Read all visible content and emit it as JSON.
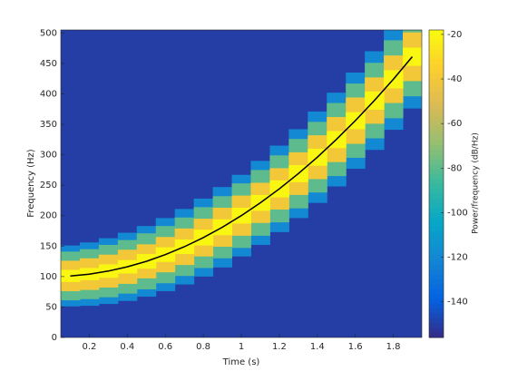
{
  "chart_data": {
    "type": "spectrogram",
    "xlabel": "Time (s)",
    "ylabel": "Frequency (Hz)",
    "colorbar_label": "Power/frequency (dB/Hz)",
    "colormap": "parula",
    "x": [
      0.1,
      0.2,
      0.3,
      0.4,
      0.5,
      0.6,
      0.7,
      0.8,
      0.9,
      1.0,
      1.1,
      1.2,
      1.3,
      1.4,
      1.5,
      1.6,
      1.7,
      1.8,
      1.9
    ],
    "ridge": [
      101,
      104,
      109,
      116,
      125,
      136,
      149,
      164,
      181,
      200,
      221,
      244,
      269,
      296,
      325,
      356,
      389,
      424,
      461
    ],
    "background_level": -150,
    "bands": [
      {
        "level": -120,
        "halfwidth": [
          50,
          52,
          54,
          56,
          58,
          60,
          62,
          64,
          66,
          67,
          69,
          71,
          73,
          75,
          77,
          79,
          81,
          83,
          85
        ]
      },
      {
        "level": -80,
        "halfwidth": [
          40,
          41,
          43,
          44,
          46,
          47,
          48,
          50,
          51,
          53,
          54,
          55,
          57,
          58,
          60,
          61,
          62,
          64,
          65
        ]
      },
      {
        "level": -40,
        "halfwidth": [
          25,
          26,
          27,
          28,
          28,
          29,
          30,
          31,
          32,
          33,
          33,
          34,
          35,
          36,
          37,
          38,
          38,
          39,
          40
        ]
      },
      {
        "level": -20,
        "halfwidth": [
          10,
          10,
          11,
          11,
          12,
          12,
          12,
          13,
          13,
          13,
          13,
          14,
          14,
          14,
          14,
          14,
          15,
          15,
          15
        ]
      }
    ],
    "xlim": [
      0.05,
      1.95
    ],
    "xticks": [
      0.2,
      0.4,
      0.6,
      0.8,
      1,
      1.2,
      1.4,
      1.6,
      1.8
    ],
    "ylim": [
      0,
      505
    ],
    "yticks": [
      0,
      50,
      100,
      150,
      200,
      250,
      300,
      350,
      400,
      450,
      500
    ],
    "clim": [
      -156,
      -18
    ],
    "cticks": [
      -140,
      -120,
      -100,
      -80,
      -60,
      -40,
      -20
    ],
    "line_color": "#000000"
  }
}
